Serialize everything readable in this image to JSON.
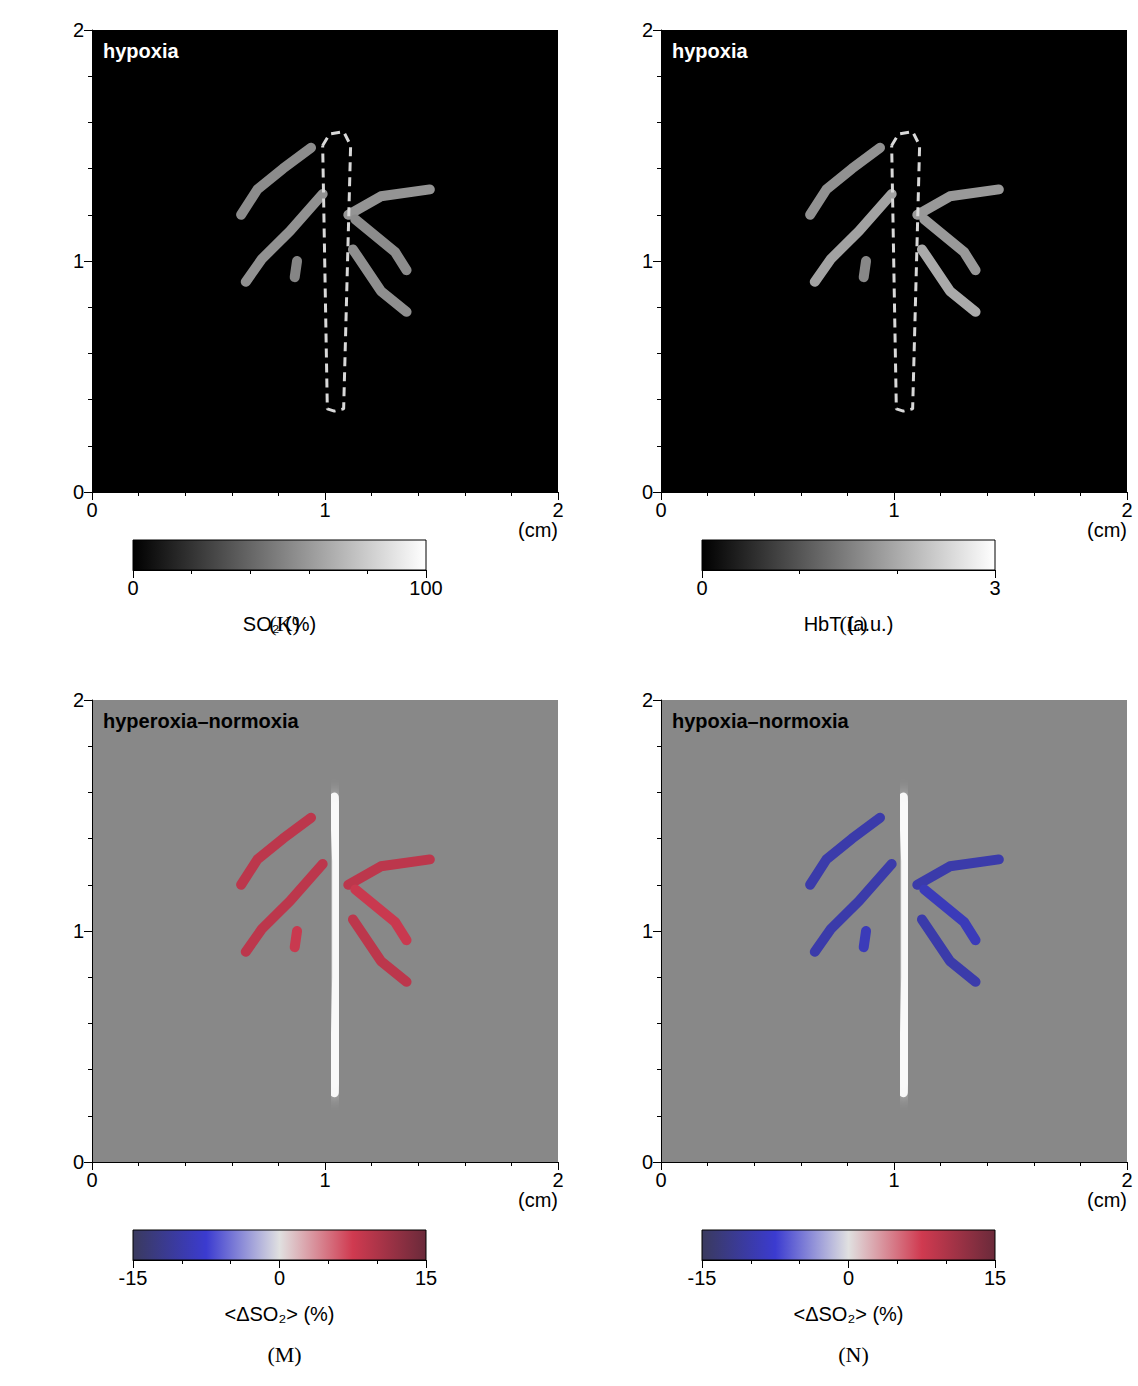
{
  "chart_data": [
    {
      "type": "vessel_map",
      "panel": "(K)",
      "title": "hypoxia",
      "color": "#000000",
      "xlim": [
        0,
        2
      ],
      "ylim": [
        0,
        2
      ],
      "xticks": [
        0,
        1,
        2
      ],
      "yticks": [
        0,
        1,
        2
      ],
      "x_label": "(cm)",
      "colorbar": {
        "label": "SO₂ (%)",
        "range": [
          0,
          100
        ],
        "ticks": [
          0,
          100
        ],
        "colors": [
          "#000000",
          "#ffffff"
        ]
      },
      "outline": {
        "x": [
          0.99,
          1.02,
          1.08,
          1.11,
          1.08,
          1.04,
          1.01,
          0.99
        ],
        "y": [
          1.5,
          1.55,
          1.56,
          1.5,
          0.36,
          0.35,
          0.36,
          1.5
        ],
        "line_style": "dashed"
      },
      "vessels": [
        {
          "x": [
            0.94,
            0.82,
            0.71,
            0.64
          ],
          "y": [
            1.49,
            1.4,
            1.31,
            1.2
          ],
          "value": 55
        },
        {
          "x": [
            0.99,
            0.85,
            0.73,
            0.66
          ],
          "y": [
            1.29,
            1.13,
            1.01,
            0.91
          ],
          "value": 57
        },
        {
          "x": [
            0.88,
            0.87
          ],
          "y": [
            1.0,
            0.93
          ],
          "value": 52
        },
        {
          "x": [
            1.1,
            1.24,
            1.45
          ],
          "y": [
            1.2,
            1.28,
            1.31
          ],
          "value": 58
        },
        {
          "x": [
            1.13,
            1.3,
            1.35
          ],
          "y": [
            1.18,
            1.04,
            0.96
          ],
          "value": 55
        },
        {
          "x": [
            1.12,
            1.24,
            1.35
          ],
          "y": [
            1.05,
            0.87,
            0.78
          ],
          "value": 56
        }
      ]
    },
    {
      "type": "vessel_map",
      "panel": "(L)",
      "title": "hypoxia",
      "color": "#000000",
      "xlim": [
        0,
        2
      ],
      "ylim": [
        0,
        2
      ],
      "xticks": [
        0,
        1,
        2
      ],
      "yticks": [
        0,
        1,
        2
      ],
      "x_label": "(cm)",
      "colorbar": {
        "label": "HbT (a.u.)",
        "range": [
          0,
          3
        ],
        "ticks": [
          0,
          3
        ],
        "colors": [
          "#000000",
          "#ffffff"
        ]
      },
      "outline": {
        "x": [
          0.99,
          1.02,
          1.08,
          1.11,
          1.08,
          1.04,
          1.01,
          0.99
        ],
        "y": [
          1.5,
          1.55,
          1.56,
          1.5,
          0.36,
          0.35,
          0.36,
          1.5
        ],
        "line_style": "dashed"
      },
      "vessels": [
        {
          "x": [
            0.94,
            0.82,
            0.71,
            0.64
          ],
          "y": [
            1.49,
            1.4,
            1.31,
            1.2
          ],
          "value": 1.7
        },
        {
          "x": [
            0.99,
            0.85,
            0.73,
            0.66
          ],
          "y": [
            1.29,
            1.13,
            1.01,
            0.91
          ],
          "value": 1.9
        },
        {
          "x": [
            0.88,
            0.87
          ],
          "y": [
            1.0,
            0.93
          ],
          "value": 1.6
        },
        {
          "x": [
            1.1,
            1.24,
            1.45
          ],
          "y": [
            1.2,
            1.28,
            1.31
          ],
          "value": 1.8
        },
        {
          "x": [
            1.13,
            1.3,
            1.35
          ],
          "y": [
            1.18,
            1.04,
            0.96
          ],
          "value": 1.8
        },
        {
          "x": [
            1.12,
            1.24,
            1.35
          ],
          "y": [
            1.05,
            0.87,
            0.78
          ],
          "value": 2.0
        }
      ]
    },
    {
      "type": "vessel_map",
      "panel": "(M)",
      "title": "hyperoxia–normoxia",
      "color": "#888888",
      "xlim": [
        0,
        2
      ],
      "ylim": [
        0,
        2
      ],
      "xticks": [
        0,
        1,
        2
      ],
      "yticks": [
        0,
        1,
        2
      ],
      "x_label": "(cm)",
      "colorbar": {
        "label": "<ΔSO₂> (%)",
        "range": [
          -15,
          15
        ],
        "ticks": [
          -15,
          0,
          15
        ],
        "colors": [
          "#3a3a5e",
          "#3b3bd0",
          "#e0e0e0",
          "#d03a50",
          "#6a2a3a"
        ]
      },
      "underlay": {
        "x": [
          1.04,
          1.05,
          1.05,
          1.04
        ],
        "y": [
          0.3,
          0.8,
          1.3,
          1.58
        ]
      },
      "vessels": [
        {
          "x": [
            0.94,
            0.82,
            0.71,
            0.64
          ],
          "y": [
            1.49,
            1.4,
            1.31,
            1.2
          ],
          "value": 9
        },
        {
          "x": [
            0.99,
            0.85,
            0.73,
            0.66
          ],
          "y": [
            1.29,
            1.13,
            1.01,
            0.91
          ],
          "value": 9
        },
        {
          "x": [
            0.88,
            0.87
          ],
          "y": [
            1.0,
            0.93
          ],
          "value": 8
        },
        {
          "x": [
            1.1,
            1.24,
            1.45
          ],
          "y": [
            1.2,
            1.28,
            1.31
          ],
          "value": 9
        },
        {
          "x": [
            1.13,
            1.3,
            1.35
          ],
          "y": [
            1.18,
            1.04,
            0.96
          ],
          "value": 8
        },
        {
          "x": [
            1.12,
            1.24,
            1.35
          ],
          "y": [
            1.05,
            0.87,
            0.78
          ],
          "value": 9
        }
      ]
    },
    {
      "type": "vessel_map",
      "panel": "(N)",
      "title": "hypoxia–normoxia",
      "color": "#888888",
      "xlim": [
        0,
        2
      ],
      "ylim": [
        0,
        2
      ],
      "xticks": [
        0,
        1,
        2
      ],
      "yticks": [
        0,
        1,
        2
      ],
      "x_label": "(cm)",
      "colorbar": {
        "label": "<ΔSO₂> (%)",
        "range": [
          -15,
          15
        ],
        "ticks": [
          -15,
          0,
          15
        ],
        "colors": [
          "#3a3a5e",
          "#3b3bd0",
          "#e0e0e0",
          "#d03a50",
          "#6a2a3a"
        ]
      },
      "underlay": {
        "x": [
          1.04,
          1.05,
          1.05,
          1.04
        ],
        "y": [
          0.3,
          0.8,
          1.3,
          1.58
        ]
      },
      "vessels": [
        {
          "x": [
            0.94,
            0.82,
            0.71,
            0.64
          ],
          "y": [
            1.49,
            1.4,
            1.31,
            1.2
          ],
          "value": -10
        },
        {
          "x": [
            0.99,
            0.85,
            0.73,
            0.66
          ],
          "y": [
            1.29,
            1.13,
            1.01,
            0.91
          ],
          "value": -10
        },
        {
          "x": [
            0.88,
            0.87
          ],
          "y": [
            1.0,
            0.93
          ],
          "value": -9
        },
        {
          "x": [
            1.1,
            1.24,
            1.45
          ],
          "y": [
            1.2,
            1.28,
            1.31
          ],
          "value": -10
        },
        {
          "x": [
            1.13,
            1.3,
            1.35
          ],
          "y": [
            1.18,
            1.04,
            0.96
          ],
          "value": -9
        },
        {
          "x": [
            1.12,
            1.24,
            1.35
          ],
          "y": [
            1.05,
            0.87,
            0.78
          ],
          "value": -10
        }
      ]
    }
  ]
}
